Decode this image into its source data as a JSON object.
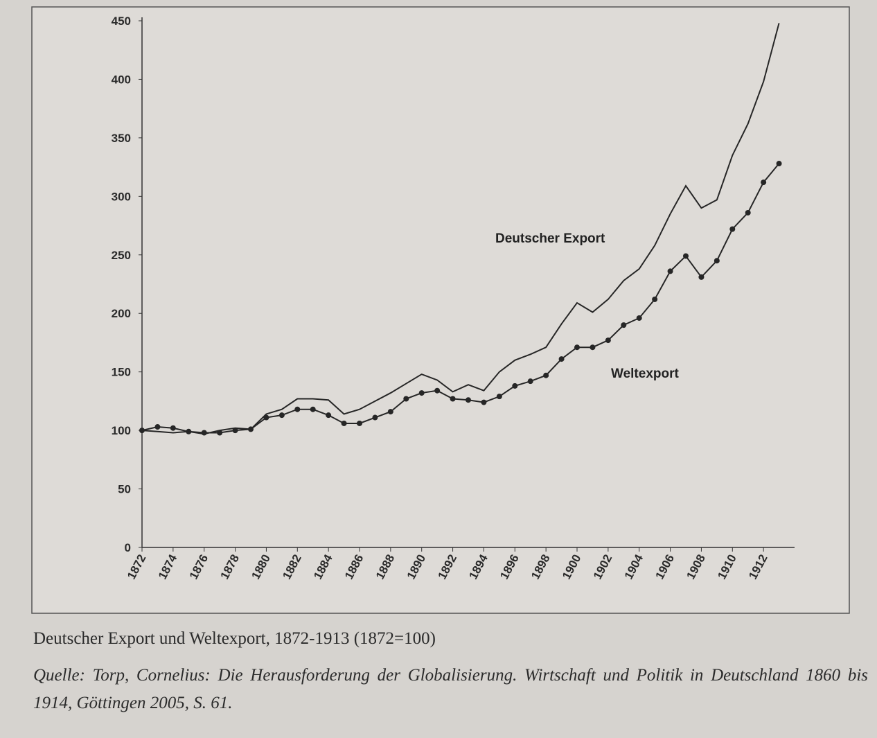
{
  "chart_data": {
    "type": "line",
    "x": [
      1872,
      1873,
      1874,
      1875,
      1876,
      1877,
      1878,
      1879,
      1880,
      1881,
      1882,
      1883,
      1884,
      1885,
      1886,
      1887,
      1888,
      1889,
      1890,
      1891,
      1892,
      1893,
      1894,
      1895,
      1896,
      1897,
      1898,
      1899,
      1900,
      1901,
      1902,
      1903,
      1904,
      1905,
      1906,
      1907,
      1908,
      1909,
      1910,
      1911,
      1912,
      1913
    ],
    "series": [
      {
        "name": "Deutscher Export",
        "color": "#262626",
        "markers": false,
        "values": [
          100,
          99,
          98,
          99,
          97,
          100,
          102,
          101,
          114,
          118,
          127,
          127,
          126,
          114,
          118,
          125,
          132,
          140,
          148,
          143,
          133,
          139,
          134,
          150,
          160,
          165,
          171,
          191,
          209,
          201,
          212,
          228,
          238,
          258,
          285,
          309,
          290,
          297,
          335,
          362,
          398,
          448
        ]
      },
      {
        "name": "Weltexport",
        "color": "#262626",
        "markers": true,
        "values": [
          100,
          103,
          102,
          99,
          98,
          98,
          100,
          101,
          111,
          113,
          118,
          118,
          113,
          106,
          106,
          111,
          116,
          127,
          132,
          134,
          127,
          126,
          124,
          129,
          138,
          142,
          147,
          161,
          171,
          171,
          177,
          190,
          196,
          212,
          236,
          249,
          231,
          245,
          272,
          286,
          312,
          328
        ]
      }
    ],
    "xlim": [
      1872,
      1914
    ],
    "xticks": [
      1872,
      1874,
      1876,
      1878,
      1880,
      1882,
      1884,
      1886,
      1888,
      1890,
      1892,
      1894,
      1896,
      1898,
      1900,
      1902,
      1904,
      1906,
      1908,
      1910,
      1912
    ],
    "ylim": [
      0,
      450
    ],
    "yticks": [
      0,
      50,
      100,
      150,
      200,
      250,
      300,
      350,
      400,
      450
    ],
    "caption": "Deutscher Export und Weltexport, 1872-1913 (1872=100)",
    "source": "Quelle: Torp, Cornelius: Die Herausforderung der Globalisierung. Wirtschaft und Politik in Deutschland 1860 bis 1914, Göttingen 2005, S. 61."
  }
}
